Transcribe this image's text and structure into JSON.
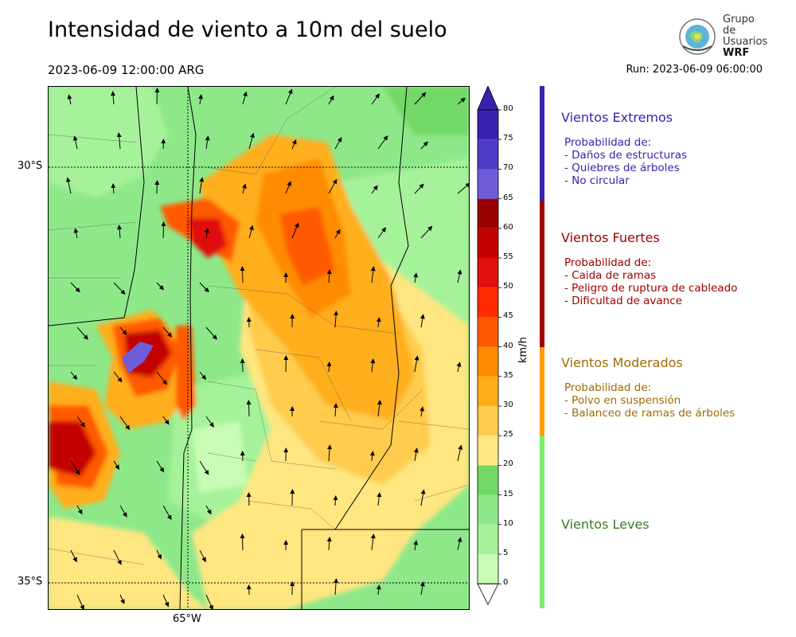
{
  "header": {
    "title": "Intensidad de viento a 10m del suelo",
    "valid_time": "2023-06-09 12:00:00 ARG",
    "run": "Run: 2023-06-09 06:00:00"
  },
  "logo": {
    "line1": "Grupo de",
    "line2": "Usuarios",
    "line3": "WRF"
  },
  "map": {
    "lat_labels": [
      "30°S",
      "35°S"
    ],
    "lon_labels": [
      "65°W"
    ]
  },
  "colorbar": {
    "unit": "km/h",
    "ticks": [
      "0",
      "5",
      "10",
      "15",
      "20",
      "25",
      "30",
      "35",
      "40",
      "45",
      "50",
      "55",
      "60",
      "65",
      "70",
      "75",
      "80"
    ],
    "colors": [
      "#ffffff",
      "#c8fcb4",
      "#a6f29a",
      "#8ee88a",
      "#72d866",
      "#ffe680",
      "#ffcc4d",
      "#ffae1a",
      "#ff8c00",
      "#ff5a00",
      "#ff2a00",
      "#e01010",
      "#c40000",
      "#9a0000",
      "#6e5cd8",
      "#4e3cc8",
      "#3a22b0"
    ],
    "extend_color": "#3a22b0"
  },
  "legend": [
    {
      "title": "Vientos Extremos",
      "color": "#3a22b0",
      "sub": [
        "Probabilidad de:",
        "- Daños de estructuras",
        "- Quiebres de árboles",
        "- No circular"
      ]
    },
    {
      "title": "Vientos Fuertes",
      "color": "#a00000",
      "sub": [
        "Probabilidad de:",
        "- Caida de ramas",
        "- Peligro de ruptura de cableado",
        "- Dificultad de avance"
      ]
    },
    {
      "title": "Vientos Moderados",
      "color": "#a06a00",
      "bar_color": "#ff9f00",
      "sub": [
        "Probabilidad de:",
        "- Polvo en suspensión",
        "- Balanceo de ramas de árboles"
      ]
    },
    {
      "title": "Vientos Leves",
      "color": "#3a7a2a",
      "bar_color": "#7aee6a",
      "sub": []
    }
  ]
}
